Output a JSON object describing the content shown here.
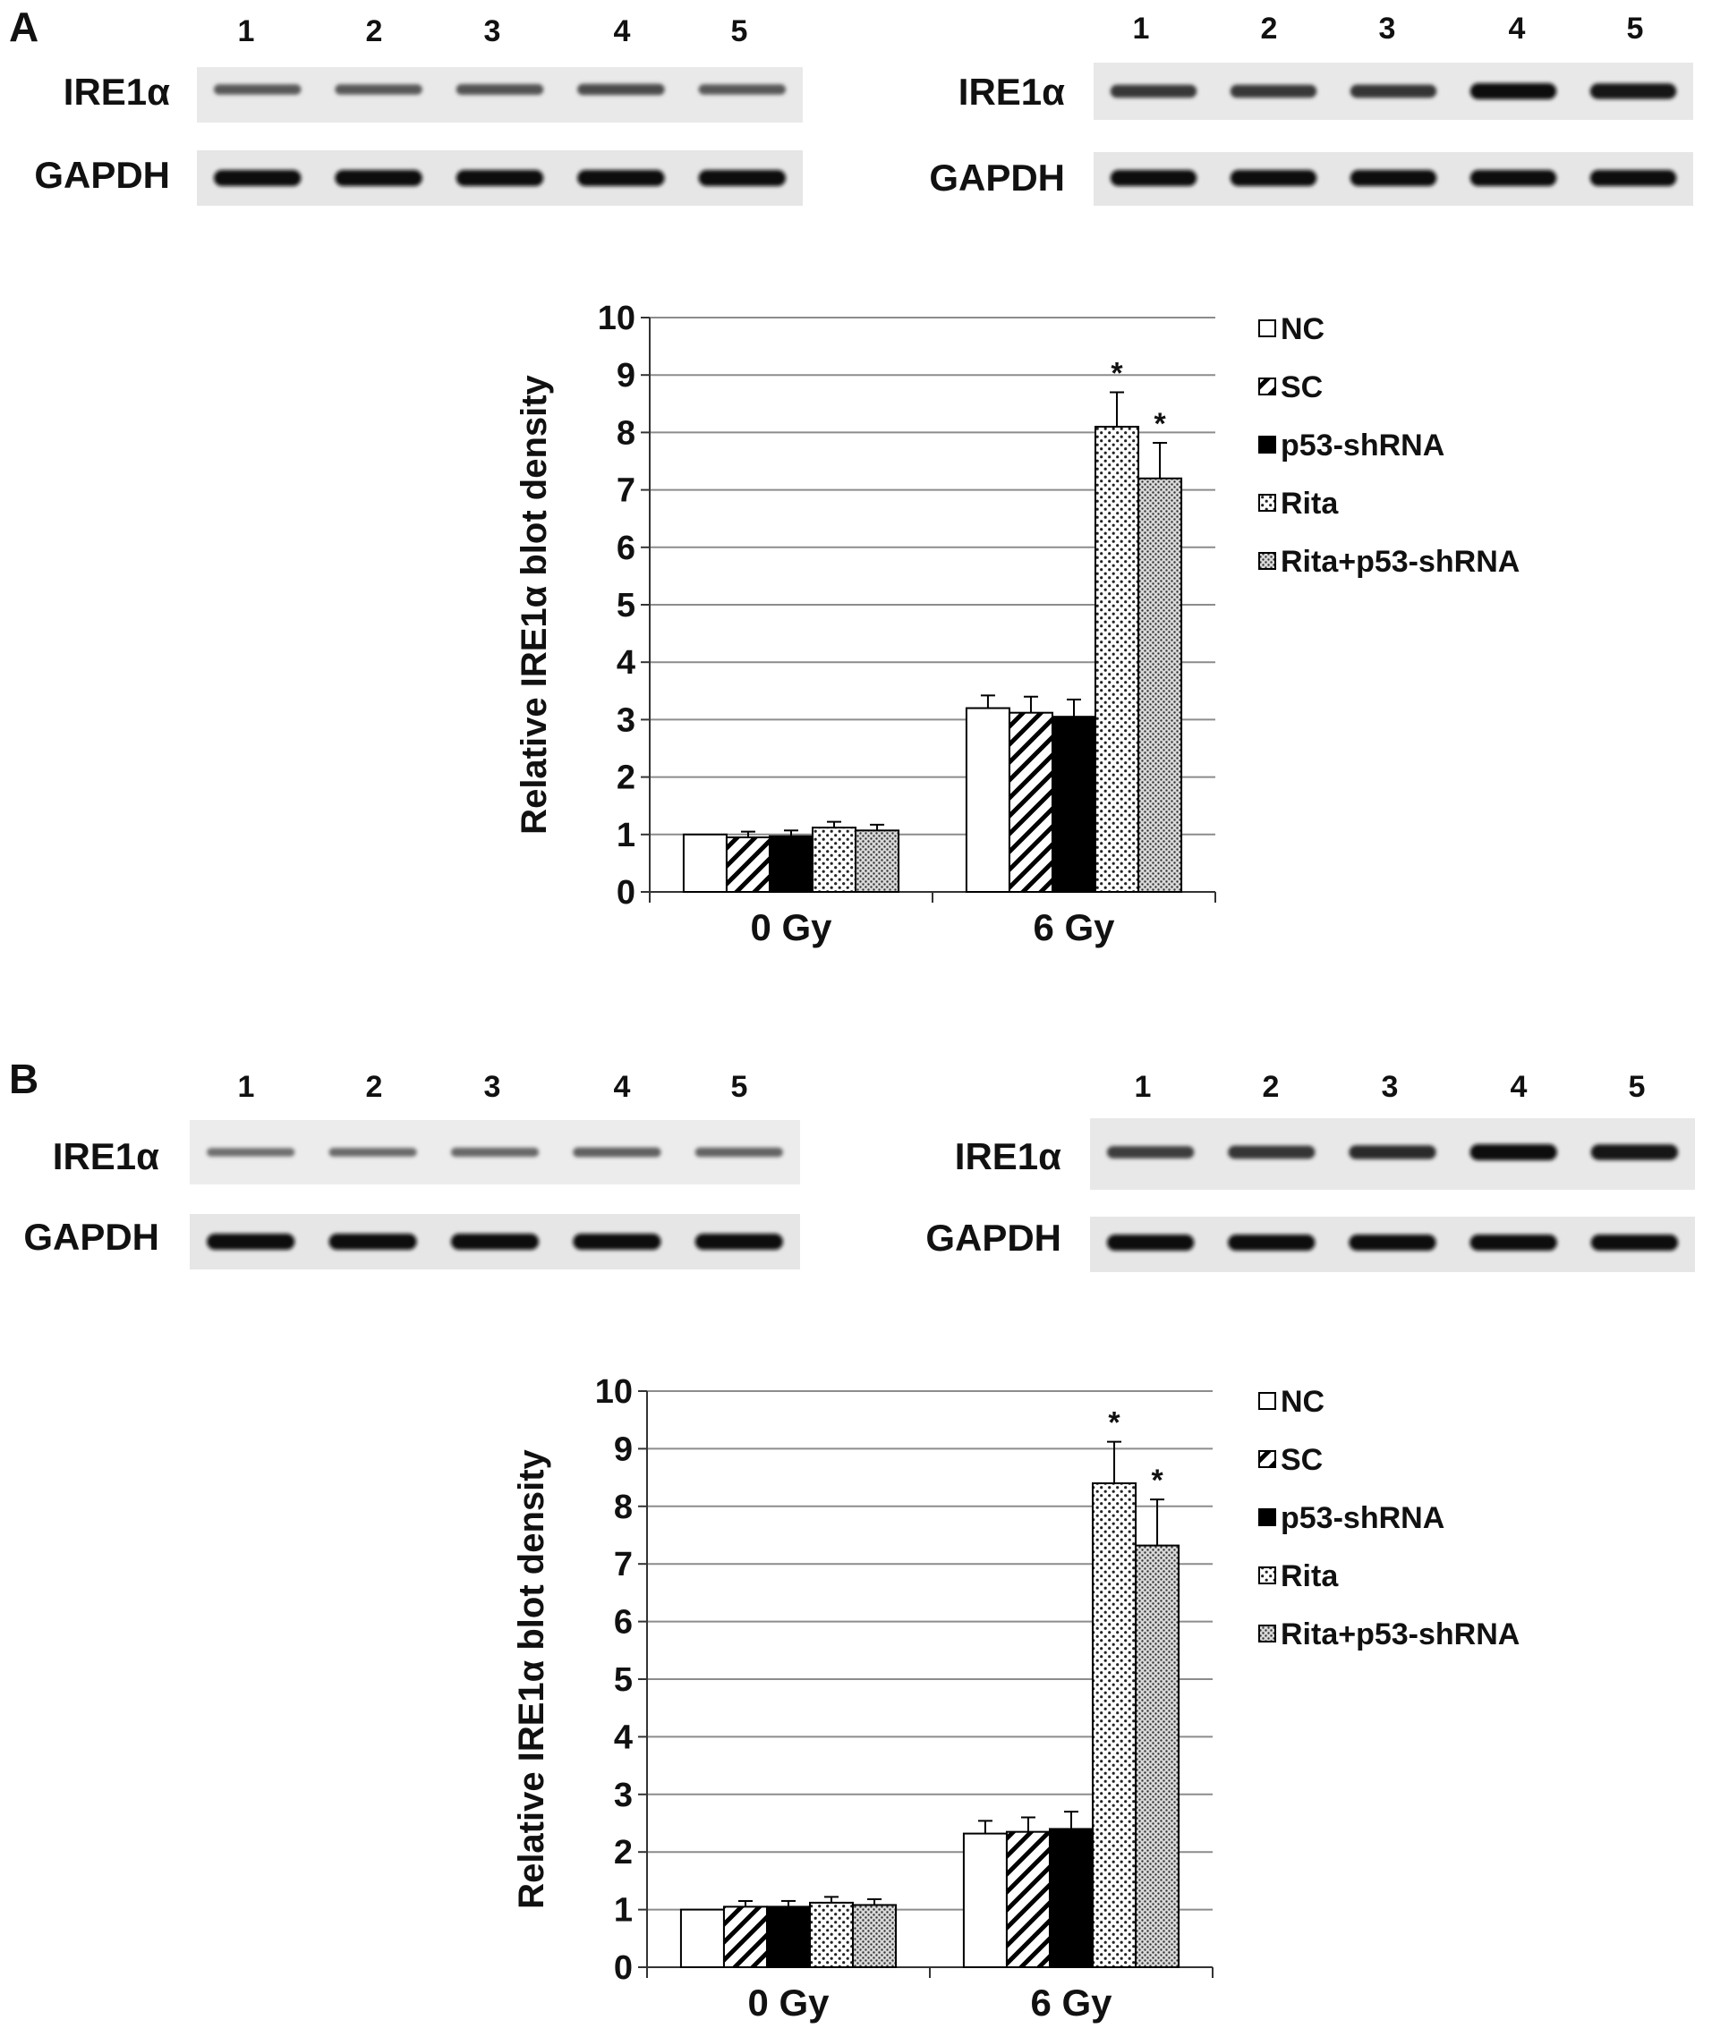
{
  "panels": [
    {
      "letter": "A",
      "blots": [
        {
          "lanes": [
            "1",
            "2",
            "3",
            "4",
            "5"
          ],
          "rows": [
            {
              "label": "IRE1α",
              "intensity": [
                0.45,
                0.45,
                0.5,
                0.55,
                0.45
              ]
            },
            {
              "label": "GAPDH",
              "intensity": [
                1.0,
                1.0,
                1.0,
                1.0,
                1.0
              ]
            }
          ]
        },
        {
          "lanes": [
            "1",
            "2",
            "3",
            "4",
            "5"
          ],
          "rows": [
            {
              "label": "IRE1α",
              "intensity": [
                0.7,
                0.7,
                0.72,
                1.0,
                0.95
              ]
            },
            {
              "label": "GAPDH",
              "intensity": [
                1.0,
                1.0,
                1.0,
                1.0,
                1.0
              ]
            }
          ]
        }
      ],
      "chart_data": {
        "type": "bar",
        "categories": [
          "0 Gy",
          "6 Gy"
        ],
        "ylabel": "Relative IRE1α blot density",
        "ylim": [
          0,
          10
        ],
        "yticks": [
          0,
          1,
          2,
          3,
          4,
          5,
          6,
          7,
          8,
          9,
          10
        ],
        "grid": true,
        "legend_position": "right",
        "series": [
          {
            "name": "NC",
            "pattern": "white",
            "values": [
              1.0,
              3.2
            ],
            "errors": [
              0.0,
              0.22
            ],
            "stars": [
              "",
              ""
            ]
          },
          {
            "name": "SC",
            "pattern": "diagonal",
            "values": [
              0.95,
              3.12
            ],
            "errors": [
              0.1,
              0.28
            ],
            "stars": [
              "",
              ""
            ]
          },
          {
            "name": "p53-shRNA",
            "pattern": "black",
            "values": [
              0.97,
              3.05
            ],
            "errors": [
              0.1,
              0.3
            ],
            "stars": [
              "",
              ""
            ]
          },
          {
            "name": "Rita",
            "pattern": "dots",
            "values": [
              1.12,
              8.1
            ],
            "errors": [
              0.1,
              0.6
            ],
            "stars": [
              "",
              "*"
            ]
          },
          {
            "name": "Rita+p53-shRNA",
            "pattern": "dense-dots",
            "values": [
              1.07,
              7.2
            ],
            "errors": [
              0.1,
              0.62
            ],
            "stars": [
              "",
              "*"
            ]
          }
        ]
      }
    },
    {
      "letter": "B",
      "blots": [
        {
          "lanes": [
            "1",
            "2",
            "3",
            "4",
            "5"
          ],
          "rows": [
            {
              "label": "IRE1α",
              "intensity": [
                0.3,
                0.32,
                0.35,
                0.4,
                0.38
              ]
            },
            {
              "label": "GAPDH",
              "intensity": [
                1.0,
                1.0,
                1.0,
                1.0,
                1.0
              ]
            }
          ]
        },
        {
          "lanes": [
            "1",
            "2",
            "3",
            "4",
            "5"
          ],
          "rows": [
            {
              "label": "IRE1α",
              "intensity": [
                0.65,
                0.72,
                0.8,
                1.0,
                0.95
              ]
            },
            {
              "label": "GAPDH",
              "intensity": [
                1.0,
                1.0,
                1.0,
                1.0,
                1.0
              ]
            }
          ]
        }
      ],
      "chart_data": {
        "type": "bar",
        "categories": [
          "0 Gy",
          "6 Gy"
        ],
        "ylabel": "Relative IRE1α blot density",
        "ylim": [
          0,
          10
        ],
        "yticks": [
          0,
          1,
          2,
          3,
          4,
          5,
          6,
          7,
          8,
          9,
          10
        ],
        "grid": true,
        "legend_position": "right",
        "series": [
          {
            "name": "NC",
            "pattern": "white",
            "values": [
              1.0,
              2.32
            ],
            "errors": [
              0.0,
              0.22
            ],
            "stars": [
              "",
              ""
            ]
          },
          {
            "name": "SC",
            "pattern": "diagonal",
            "values": [
              1.05,
              2.35
            ],
            "errors": [
              0.1,
              0.25
            ],
            "stars": [
              "",
              ""
            ]
          },
          {
            "name": "p53-shRNA",
            "pattern": "black",
            "values": [
              1.05,
              2.4
            ],
            "errors": [
              0.1,
              0.3
            ],
            "stars": [
              "",
              ""
            ]
          },
          {
            "name": "Rita",
            "pattern": "dots",
            "values": [
              1.12,
              8.4
            ],
            "errors": [
              0.1,
              0.72
            ],
            "stars": [
              "",
              "*"
            ]
          },
          {
            "name": "Rita+p53-shRNA",
            "pattern": "dense-dots",
            "values": [
              1.08,
              7.32
            ],
            "errors": [
              0.1,
              0.8
            ],
            "stars": [
              "",
              "*"
            ]
          }
        ]
      }
    }
  ]
}
